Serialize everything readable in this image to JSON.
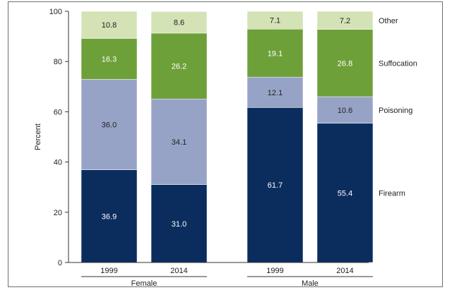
{
  "chart_data": {
    "type": "bar",
    "stacked": true,
    "ylabel": "Percent",
    "ylim": [
      0,
      100
    ],
    "yticks": [
      "0",
      "20",
      "40",
      "60",
      "80",
      "100"
    ],
    "groups": [
      {
        "label": "Female",
        "bars": [
          "1999",
          "2014"
        ]
      },
      {
        "label": "Male",
        "bars": [
          "1999",
          "2014"
        ]
      }
    ],
    "categories": [
      "1999",
      "2014",
      "1999",
      "2014"
    ],
    "series": [
      {
        "name": "Firearm",
        "color": "#0b2d5e",
        "text_color": "#ffffff",
        "values": [
          36.9,
          31.0,
          61.7,
          55.4
        ],
        "labels": [
          "36.9",
          "31.0",
          "61.7",
          "55.4"
        ]
      },
      {
        "name": "Poisoning",
        "color": "#97a3c6",
        "text_color": "#222222",
        "values": [
          36.0,
          34.1,
          12.1,
          10.6
        ],
        "labels": [
          "36.0",
          "34.1",
          "12.1",
          "10.6"
        ]
      },
      {
        "name": "Suffocation",
        "color": "#6ea03a",
        "text_color": "#ffffff",
        "values": [
          16.3,
          26.2,
          19.1,
          26.8
        ],
        "labels": [
          "16.3",
          "26.2",
          "19.1",
          "26.8"
        ]
      },
      {
        "name": "Other",
        "color": "#d3e3b6",
        "text_color": "#222222",
        "values": [
          10.8,
          8.6,
          7.1,
          7.2
        ],
        "labels": [
          "10.8",
          "8.6",
          "7.1",
          "7.2"
        ]
      }
    ],
    "grid": false,
    "legend": "right, beside bars"
  }
}
